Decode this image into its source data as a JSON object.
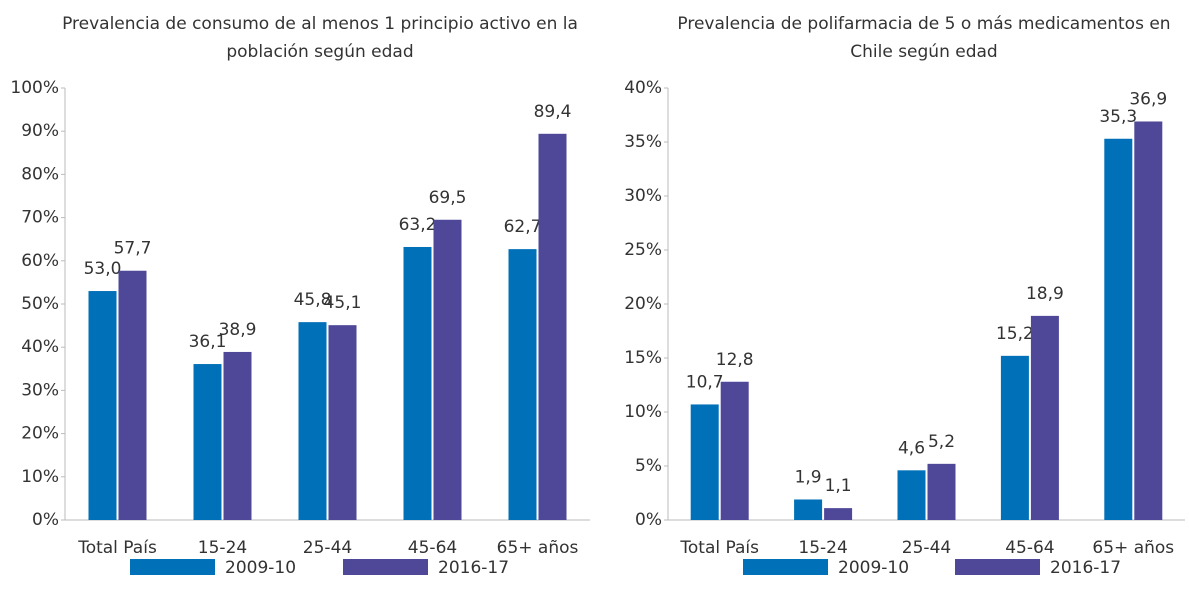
{
  "chart_data": [
    {
      "type": "bar",
      "title": "Prevalencia de consumo de al menos 1 principio activo en la población según edad",
      "categories": [
        "Total País",
        "15-24",
        "25-44",
        "45-64",
        "65+ años"
      ],
      "series": [
        {
          "name": "2009-10",
          "color": "#0070b8",
          "values": [
            53.0,
            36.1,
            45.8,
            63.2,
            62.7
          ],
          "value_labels": [
            "53,0",
            "36,1",
            "45,8",
            "63,2",
            "62,7"
          ]
        },
        {
          "name": "2016-17",
          "color": "#4f4899",
          "values": [
            57.7,
            38.9,
            45.1,
            69.5,
            89.4
          ],
          "value_labels": [
            "57,7",
            "38,9",
            "45,1",
            "69,5",
            "89,4"
          ]
        }
      ],
      "ylim": [
        0,
        100
      ],
      "yticks": [
        {
          "value": 0,
          "label": "0%"
        },
        {
          "value": 10,
          "label": "10%"
        },
        {
          "value": 20,
          "label": "20%"
        },
        {
          "value": 30,
          "label": "30%"
        },
        {
          "value": 40,
          "label": "40%"
        },
        {
          "value": 50,
          "label": "50%"
        },
        {
          "value": 60,
          "label": "60%"
        },
        {
          "value": 70,
          "label": "70%"
        },
        {
          "value": 80,
          "label": "80%"
        },
        {
          "value": 90,
          "label": "90%"
        },
        {
          "value": 100,
          "label": "100%"
        }
      ],
      "grid": false,
      "legend": "bottom"
    },
    {
      "type": "bar",
      "title": "Prevalencia de polifarmacia de 5 o más medicamentos en Chile según edad",
      "categories": [
        "Total País",
        "15-24",
        "25-44",
        "45-64",
        "65+ años"
      ],
      "series": [
        {
          "name": "2009-10",
          "color": "#0070b8",
          "values": [
            10.7,
            1.9,
            4.6,
            15.2,
            35.3
          ],
          "value_labels": [
            "10,7",
            "1,9",
            "4,6",
            "15,2",
            "35,3"
          ]
        },
        {
          "name": "2016-17",
          "color": "#4f4899",
          "values": [
            12.8,
            1.1,
            5.2,
            18.9,
            36.9
          ],
          "value_labels": [
            "12,8",
            "1,1",
            "5,2",
            "18,9",
            "36,9"
          ]
        }
      ],
      "ylim": [
        0,
        40
      ],
      "yticks": [
        {
          "value": 0,
          "label": "0%"
        },
        {
          "value": 5,
          "label": "5%"
        },
        {
          "value": 10,
          "label": "10%"
        },
        {
          "value": 15,
          "label": "15%"
        },
        {
          "value": 20,
          "label": "20%"
        },
        {
          "value": 25,
          "label": "25%"
        },
        {
          "value": 30,
          "label": "30%"
        },
        {
          "value": 35,
          "label": "35%"
        },
        {
          "value": 40,
          "label": "40%"
        }
      ],
      "grid": false,
      "legend": "bottom"
    }
  ]
}
